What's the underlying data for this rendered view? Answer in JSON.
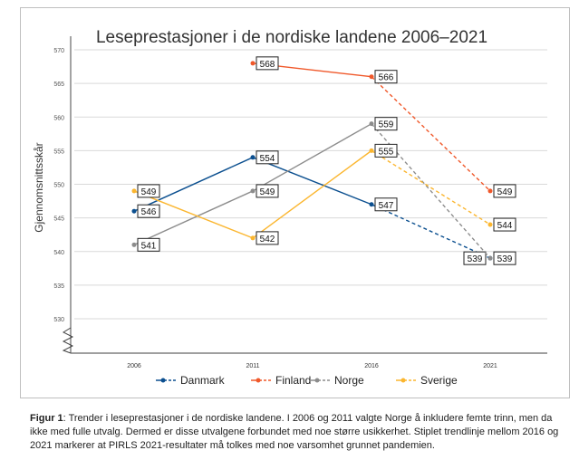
{
  "chart_data": {
    "type": "line",
    "title": "Leseprestasjoner i de nordiske landene 2006–2021",
    "ylabel": "Gjennomsnittsskår",
    "xlabel": "",
    "categories": [
      "2006",
      "2011",
      "2016",
      "2021"
    ],
    "ylim": [
      530,
      570
    ],
    "yticks": [
      "530",
      "535",
      "540",
      "545",
      "550",
      "555",
      "560",
      "565",
      "570"
    ],
    "grid": true,
    "legend_position": "bottom",
    "dashed_segment": "2016-2021",
    "series": [
      {
        "name": "Danmark",
        "color": "#0b4f8f",
        "values": [
          546,
          554,
          547,
          539
        ]
      },
      {
        "name": "Finland",
        "color": "#f0582a",
        "values": [
          null,
          568,
          566,
          549
        ]
      },
      {
        "name": "Norge",
        "color": "#8c8c8c",
        "values": [
          541,
          549,
          559,
          539
        ]
      },
      {
        "name": "Sverige",
        "color": "#fbb62f",
        "values": [
          549,
          542,
          555,
          544
        ]
      }
    ]
  },
  "caption": {
    "label": "Figur 1",
    "text": ": Trender i leseprestasjoner i de nordiske landene. I 2006 og 2011 valgte Norge å inkludere femte trinn, men da ikke med fulle utvalg. Dermed er disse utvalgene forbundet med noe større usikkerhet. Stiplet trendlinje mellom 2016 og 2021 markerer at PIRLS 2021-resultater må tolkes med noe varsomhet grunnet pandemien."
  }
}
